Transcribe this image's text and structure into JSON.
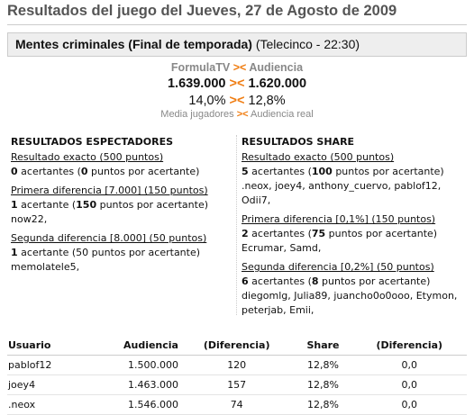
{
  "header": {
    "title": "Resultados del juego del Jueves, 27 de Agosto de 2009"
  },
  "program": {
    "name": "Mentes criminales (Final de temporada)",
    "info": "(Telecinco - 22:30)"
  },
  "summary": {
    "sep": "><",
    "left_label": "FormulaTV",
    "right_label": "Audiencia",
    "left_viewers": "1.639.000",
    "right_viewers": "1.620.000",
    "left_share": "14,0%",
    "right_share": "12,8%",
    "left_caption": "Media jugadores",
    "right_caption": "Audiencia real"
  },
  "columns": [
    {
      "heading": "RESULTADOS ESPECTADORES",
      "groups": [
        {
          "title": "Resultado exacto (500 puntos)",
          "result": [
            {
              "text": "0",
              "bold": true
            },
            {
              "text": " acertantes ("
            },
            {
              "text": "0",
              "bold": true
            },
            {
              "text": " puntos por acertante)"
            }
          ]
        },
        {
          "title": "Primera diferencia [7.000] (150 puntos)",
          "result": [
            {
              "text": "1",
              "bold": true
            },
            {
              "text": " acertante ("
            },
            {
              "text": "150",
              "bold": true
            },
            {
              "text": " puntos por acertante)"
            }
          ],
          "names": "now22,"
        },
        {
          "title": "Segunda diferencia [8.000] (50 puntos)",
          "result": [
            {
              "text": "1",
              "bold": true
            },
            {
              "text": " acertante (50 puntos por acertante)"
            }
          ],
          "names": "memolatele5,"
        }
      ]
    },
    {
      "heading": "RESULTADOS SHARE",
      "groups": [
        {
          "title": "Resultado exacto (500 puntos)",
          "result": [
            {
              "text": "5",
              "bold": true
            },
            {
              "text": " acertantes ("
            },
            {
              "text": "100",
              "bold": true
            },
            {
              "text": " puntos por acertante)"
            }
          ],
          "names": ".neox, joey4, anthony_cuervo, pablof12, Odii7,"
        },
        {
          "title": "Primera diferencia [0,1%] (150 puntos)",
          "result": [
            {
              "text": "2",
              "bold": true
            },
            {
              "text": " acertantes ("
            },
            {
              "text": "75",
              "bold": true
            },
            {
              "text": " puntos por acertante)"
            }
          ],
          "names": "Ecrumar, Samd,"
        },
        {
          "title": "Segunda diferencia [0,2%] (50 puntos)",
          "result": [
            {
              "text": "6",
              "bold": true
            },
            {
              "text": " acertantes ("
            },
            {
              "text": "8",
              "bold": true
            },
            {
              "text": " puntos por acertante)"
            }
          ],
          "names": "diegomlg, Julia89, juancho0o0ooo, Etymon, peterjab, Emii,"
        }
      ]
    }
  ],
  "table": {
    "headers": [
      "Usuario",
      "Audiencia",
      "(Diferencia)",
      "Share",
      "(Diferencia)"
    ],
    "rows": [
      [
        "pablof12",
        "1.500.000",
        "120",
        "12,8%",
        "0,0"
      ],
      [
        "joey4",
        "1.463.000",
        "157",
        "12,8%",
        "0,0"
      ],
      [
        ".neox",
        "1.546.000",
        "74",
        "12,8%",
        "0,0"
      ]
    ]
  }
}
